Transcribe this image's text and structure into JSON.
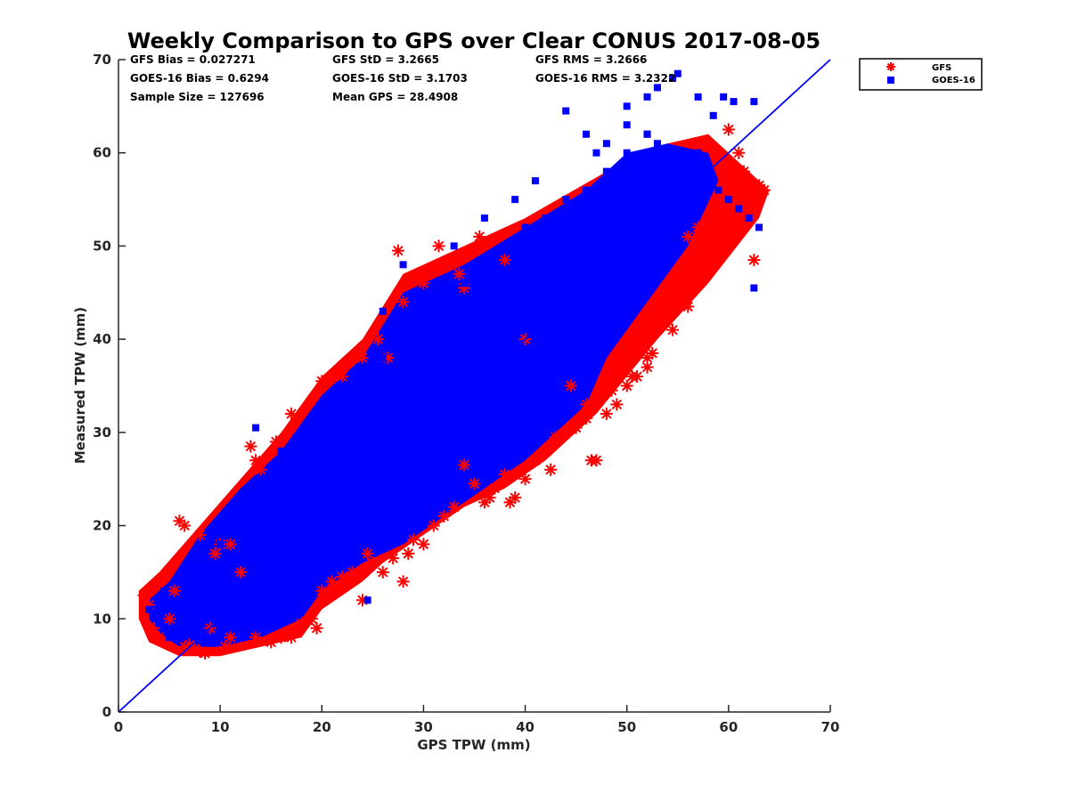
{
  "chart_data": {
    "type": "scatter",
    "title": "Weekly Comparison to GPS over Clear CONUS 2017-08-05",
    "xlabel": "GPS TPW (mm)",
    "ylabel": "Measured TPW (mm)",
    "xlim": [
      0,
      70
    ],
    "ylim": [
      0,
      70
    ],
    "xticks": [
      "0",
      "10",
      "20",
      "30",
      "40",
      "50",
      "60",
      "70"
    ],
    "yticks": [
      "0",
      "10",
      "20",
      "30",
      "40",
      "50",
      "60",
      "70"
    ],
    "grid": false,
    "legend_position": "outside-top-right",
    "reference_line": {
      "x": [
        0,
        70
      ],
      "y": [
        0,
        70
      ],
      "color": "#0000ff"
    },
    "stats": [
      [
        "GFS Bias = 0.027271",
        "GFS StD = 3.2665",
        "GFS RMS = 3.2666"
      ],
      [
        "GOES-16 Bias = 0.6294",
        "GOES-16 StD = 3.1703",
        "GOES-16 RMS = 3.2322"
      ],
      [
        "Sample Size = 127696",
        "Mean GPS = 28.4908",
        ""
      ]
    ],
    "series": [
      {
        "name": "GFS",
        "marker": "asterisk",
        "color": "#ff0000",
        "x": [
          2.5,
          3,
          3.5,
          4,
          4.5,
          5,
          5.5,
          6,
          6.5,
          6.5,
          7,
          7.5,
          8,
          8.5,
          9,
          10,
          10.5,
          11,
          12,
          13,
          13.5,
          14,
          15,
          16,
          17,
          18,
          19,
          19.5,
          20,
          21,
          22,
          23,
          24,
          24.5,
          25,
          26,
          27,
          28,
          28.5,
          29,
          30,
          31,
          32,
          33,
          34,
          35,
          36,
          36.5,
          37,
          38,
          38.5,
          39,
          40,
          41,
          42,
          42.5,
          43,
          44,
          45,
          46,
          46.5,
          47,
          48,
          49,
          50,
          51,
          52,
          52.5,
          53,
          54,
          55,
          56,
          56.5,
          57,
          57.5,
          58,
          58.5,
          59,
          59.5,
          60,
          60.5,
          61,
          62,
          62.5,
          63,
          63.5,
          27.5,
          29,
          31.5,
          33.5,
          35.5,
          38,
          20,
          22,
          24,
          25.5,
          13.5,
          15.5,
          17,
          11,
          9.5,
          8,
          26.5,
          28,
          30,
          34,
          40,
          44.5,
          46,
          48.5,
          50.5,
          52,
          54.5,
          55.5,
          56,
          57,
          59,
          60,
          61.5
        ],
        "y": [
          12.5,
          11.5,
          9,
          8,
          7.5,
          10,
          13,
          20.5,
          20,
          7,
          7.2,
          6.8,
          6.5,
          6.3,
          9,
          18,
          7,
          8,
          15,
          28.5,
          8,
          26,
          7.5,
          8,
          8,
          9.5,
          10,
          9,
          13,
          14,
          14.5,
          15,
          12,
          17,
          16,
          15,
          16.5,
          14,
          17,
          18.5,
          18,
          20,
          21,
          22,
          26.5,
          24.5,
          22.5,
          23,
          24,
          25.5,
          22.5,
          23,
          25,
          27,
          28,
          26,
          29.5,
          30,
          30.5,
          31.5,
          27,
          27,
          32,
          33,
          35,
          36,
          37,
          38.5,
          43,
          42,
          44,
          43.5,
          45.5,
          47,
          50,
          52,
          53,
          55,
          55.5,
          57,
          56,
          60,
          56,
          48.5,
          56.5,
          56,
          49.5,
          46.5,
          50,
          47,
          51,
          48.5,
          35.5,
          36,
          38,
          40,
          27,
          29,
          32,
          18,
          17,
          19,
          38,
          44,
          46,
          45.5,
          40,
          35,
          33,
          34.5,
          36,
          38,
          41,
          45,
          51,
          52,
          54,
          62.5,
          58
        ],
        "count": 127696
      },
      {
        "name": "GOES-16",
        "marker": "square",
        "color": "#0000ff",
        "x": [
          3,
          4,
          4.5,
          5,
          6,
          7,
          8,
          9,
          10,
          11,
          12,
          13,
          13.5,
          14,
          15,
          16,
          17,
          18,
          19,
          20,
          21,
          22,
          23,
          24,
          25,
          26,
          27,
          28,
          29,
          30,
          31,
          32,
          33,
          34,
          35,
          36,
          37,
          38,
          39,
          40,
          41,
          42,
          43,
          44,
          45,
          46,
          47,
          48,
          49,
          50,
          51,
          52,
          53,
          54,
          55,
          56,
          57,
          58,
          59,
          60,
          61,
          62,
          63,
          44,
          46,
          48,
          50,
          52,
          53,
          54.5,
          55,
          57,
          58.5,
          59.5,
          60.5,
          62.5,
          24.5,
          26,
          28,
          33,
          36,
          39,
          41,
          47,
          50,
          52,
          62.5
        ],
        "y": [
          11,
          9.5,
          13,
          8,
          14,
          10,
          16,
          12,
          18,
          20,
          17,
          22,
          30.5,
          24,
          20,
          28,
          26,
          30,
          27,
          33,
          30,
          35,
          32,
          37,
          34,
          38,
          36,
          40,
          38,
          42,
          40,
          44,
          43,
          46,
          45,
          48,
          47,
          50,
          49,
          52,
          51,
          53,
          52,
          55,
          54,
          56,
          55,
          58,
          57,
          60,
          59,
          62,
          61,
          60,
          58,
          59,
          60,
          57,
          56,
          55,
          54,
          53,
          52,
          64.5,
          62,
          61,
          65,
          66,
          67,
          68,
          68.5,
          66,
          64,
          66,
          65.5,
          65.5,
          12,
          43,
          48,
          50,
          53,
          55,
          57,
          60,
          63,
          62,
          45.5
        ],
        "count": 127696
      }
    ]
  }
}
